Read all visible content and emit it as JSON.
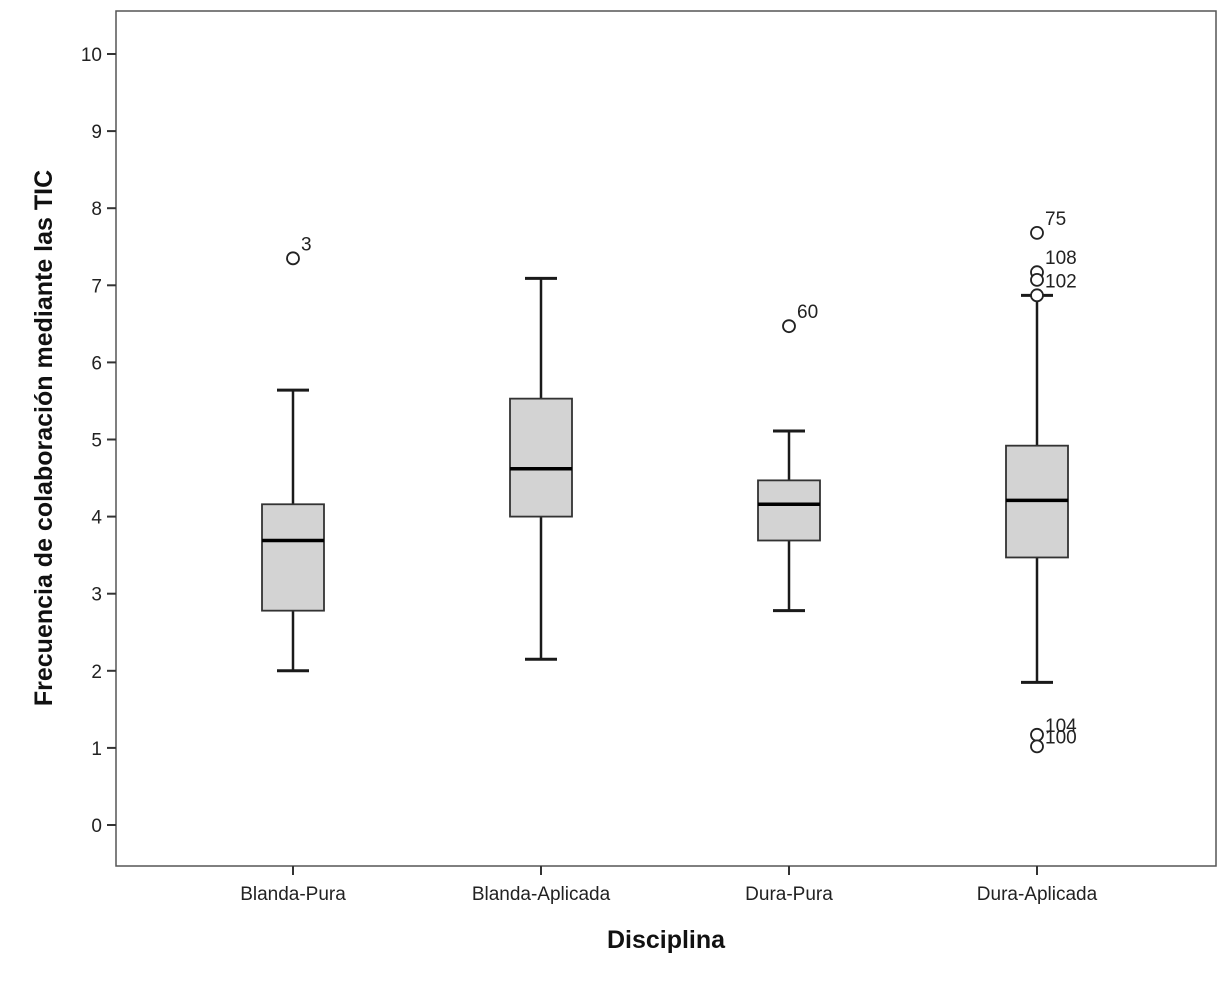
{
  "chart_data": {
    "type": "boxplot",
    "xlabel": "Disciplina",
    "ylabel": "Frecuencia de colaboración mediante las TIC",
    "ylim": [
      -0.55,
      10.55
    ],
    "yticks": [
      0,
      1,
      2,
      3,
      4,
      5,
      6,
      7,
      8,
      9,
      10
    ],
    "ytick_labels": [
      "0",
      "1",
      "2",
      "3",
      "4",
      "5",
      "6",
      "7",
      "8",
      "9",
      "10"
    ],
    "categories": [
      "Blanda-Pura",
      "Blanda-Aplicada",
      "Dura-Pura",
      "Dura-Aplicada"
    ],
    "grid": false,
    "box_color": "#d3d3d3",
    "line_color": "#1a1a1a",
    "boxes": [
      {
        "category": "Blanda-Pura",
        "whisker_low": 2.0,
        "q1": 2.78,
        "median": 3.69,
        "q3": 4.16,
        "whisker_high": 5.64,
        "outliers": [
          {
            "value": 7.35,
            "label": "3"
          }
        ]
      },
      {
        "category": "Blanda-Aplicada",
        "whisker_low": 2.15,
        "q1": 4.0,
        "median": 4.62,
        "q3": 5.53,
        "whisker_high": 7.09,
        "outliers": []
      },
      {
        "category": "Dura-Pura",
        "whisker_low": 2.78,
        "q1": 3.69,
        "median": 4.16,
        "q3": 4.47,
        "whisker_high": 5.11,
        "outliers": [
          {
            "value": 6.47,
            "label": "60"
          }
        ]
      },
      {
        "category": "Dura-Aplicada",
        "whisker_low": 1.85,
        "q1": 3.47,
        "median": 4.21,
        "q3": 4.92,
        "whisker_high": 6.87,
        "outliers": [
          {
            "value": 7.68,
            "label": "75"
          },
          {
            "value": 7.17,
            "label": "108"
          },
          {
            "value": 7.07,
            "label": ""
          },
          {
            "value": 6.87,
            "label": "102"
          },
          {
            "value": 1.17,
            "label": "104"
          },
          {
            "value": 1.02,
            "label": "100"
          }
        ]
      }
    ]
  }
}
